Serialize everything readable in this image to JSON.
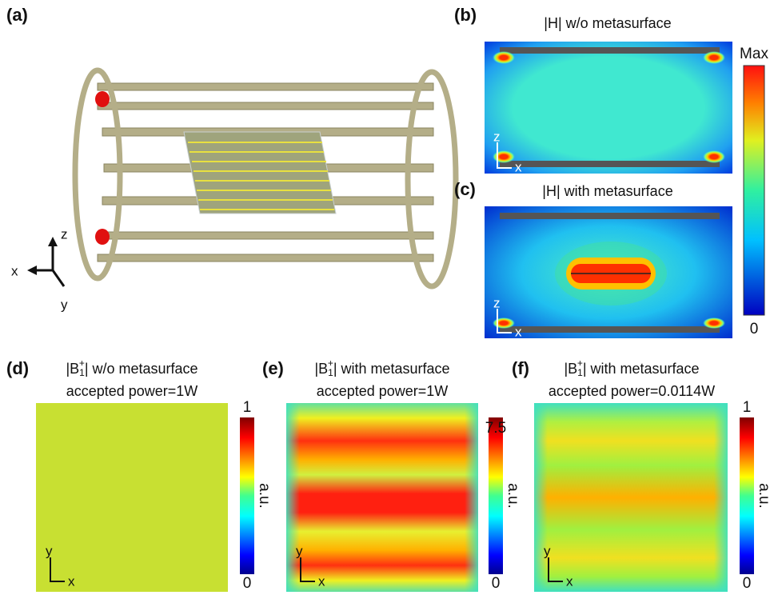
{
  "panels": {
    "a": {
      "label": "(a)",
      "axes": {
        "z": "z",
        "x": "x",
        "y": "y"
      }
    },
    "b": {
      "label": "(b)",
      "title": "|H| w/o metasurface",
      "axes": {
        "z": "z",
        "x": "x"
      }
    },
    "c": {
      "label": "(c)",
      "title": "|H| with metasurface",
      "axes": {
        "z": "z",
        "x": "x"
      }
    },
    "bc_colorbar": {
      "max": "Max",
      "min": "0"
    },
    "d": {
      "label": "(d)",
      "title": {
        "prefix": "|B",
        "sub": "1",
        "sup": "+",
        "suffix": "| w/o metasurface"
      },
      "subtitle": "accepted power=1W",
      "colorbar": {
        "max": "1",
        "unit": "a.u.",
        "min": "0"
      },
      "axes": {
        "y": "y",
        "x": "x"
      }
    },
    "e": {
      "label": "(e)",
      "title": {
        "prefix": "|B",
        "sub": "1",
        "sup": "+",
        "suffix": "| with metasurface"
      },
      "subtitle": "accepted power=1W",
      "colorbar": {
        "max": "7.5",
        "unit": "a.u.",
        "min": "0"
      },
      "axes": {
        "y": "y",
        "x": "x"
      }
    },
    "f": {
      "label": "(f)",
      "title": {
        "prefix": "|B",
        "sub": "1",
        "sup": "+",
        "suffix": "| with metasurface"
      },
      "subtitle": "accepted power=0.0114W",
      "colorbar": {
        "max": "1",
        "unit": "a.u.",
        "min": "0"
      },
      "axes": {
        "y": "y",
        "x": "x"
      }
    }
  }
}
